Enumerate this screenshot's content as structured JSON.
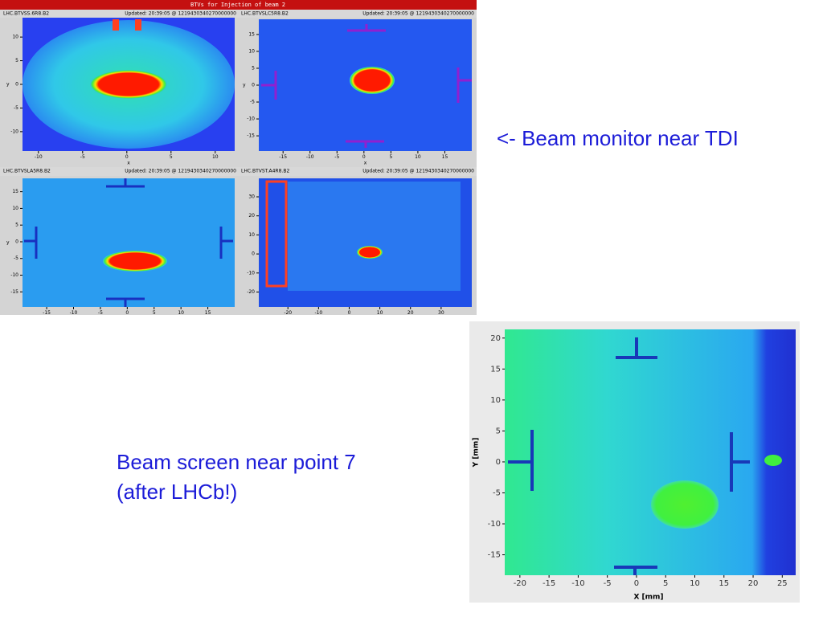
{
  "window": {
    "title": "BTVs for Injection of beam 2",
    "panels": [
      {
        "name": "LHC.BTVSS.6R8.B2",
        "updated": "Updated: 20:39:05 @ 1219430340270000000",
        "ylabel": "y",
        "xlabel": "x",
        "xlim": [
          -11.8,
          12.2
        ],
        "ylim": [
          -14.1,
          14.1
        ],
        "xticks": [
          -10,
          -5,
          0,
          5,
          10
        ],
        "yticks": [
          10,
          5,
          0,
          -5,
          -10
        ]
      },
      {
        "name": "LHC.BTVSLC5R8.B2",
        "updated": "Updated: 20:39:05 @ 1219430340270000000",
        "ylabel": "y",
        "xlabel": "x",
        "xlim": [
          -19.5,
          20
        ],
        "ylim": [
          -19.5,
          19.5
        ],
        "xticks": [
          -15,
          -10,
          -5,
          0,
          5,
          10,
          15
        ],
        "yticks": [
          15,
          10,
          5,
          0,
          -5,
          -10,
          -15
        ]
      },
      {
        "name": "LHC.BTVSLA5R8.B2",
        "updated": "Updated: 20:39:05 @ 1219430340270000000",
        "ylabel": "y",
        "xlim": [
          -19.5,
          20
        ],
        "ylim": [
          -19.5,
          19
        ],
        "xticks": [
          -15,
          -10,
          -5,
          0,
          5,
          10,
          15
        ],
        "yticks": [
          15,
          10,
          5,
          0,
          -5,
          -10,
          -15
        ]
      },
      {
        "name": "LHC.BTVST.A4R8.B2",
        "updated": "Updated: 20:39:05 @ 1219430340270000000",
        "xlim": [
          -29.5,
          40
        ],
        "ylim": [
          -27.8,
          39.7
        ],
        "xticks": [
          -20,
          -10,
          0,
          10,
          20,
          30
        ],
        "yticks": [
          30,
          20,
          10,
          0,
          -10,
          -20
        ]
      }
    ]
  },
  "captions": [
    "<- Beam monitor near TDI",
    "Beam screen near point 7",
    "(after LHCb!)"
  ],
  "screen": {
    "ylabel": "Y [mm]",
    "xlabel": "X [mm]",
    "xlim": [
      -22.6,
      27.3
    ],
    "ylim": [
      -18.3,
      21.4
    ],
    "xticks": [
      -20,
      -15,
      -10,
      -5,
      0,
      5,
      10,
      15,
      20,
      25
    ],
    "yticks": [
      20,
      15,
      10,
      5,
      0,
      -5,
      -10,
      -15
    ]
  }
}
